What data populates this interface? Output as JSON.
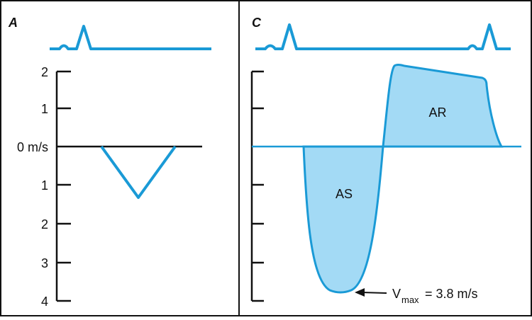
{
  "panels": [
    {
      "label": "A",
      "axis_labels": [
        "2",
        "1",
        "0 m/s",
        "1",
        "2",
        "3",
        "4"
      ]
    },
    {
      "label": "C",
      "regions": [
        "AS",
        "AR"
      ],
      "annotation": {
        "symbol": "V",
        "subscript": "max",
        "text": "= 3.8 m/s"
      }
    }
  ]
}
